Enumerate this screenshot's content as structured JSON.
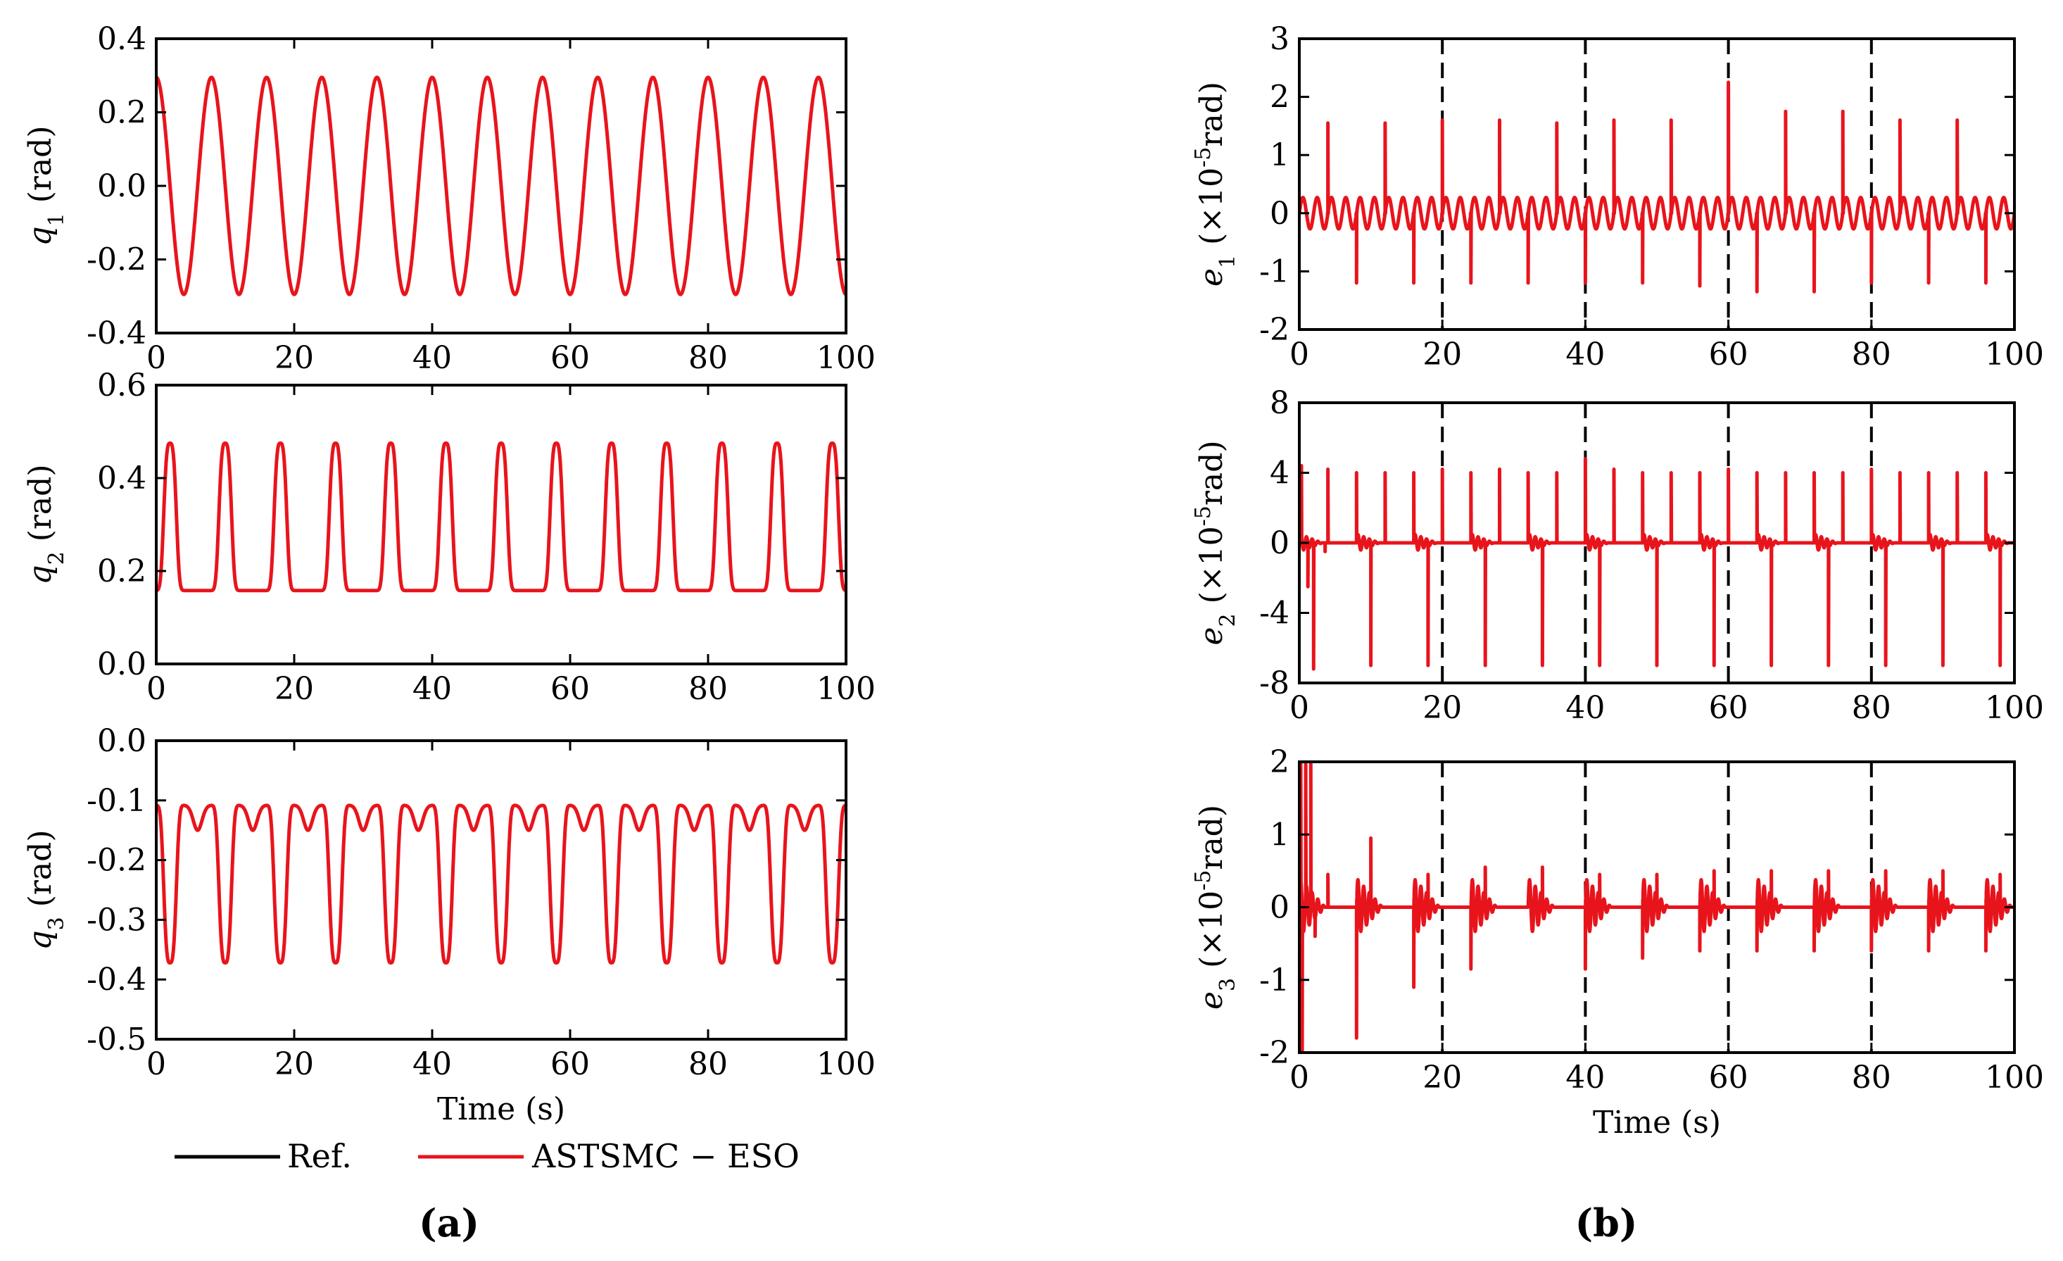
{
  "figure": {
    "panel_a_label": "(a)",
    "panel_b_label": "(b)",
    "legend": {
      "ref_label": "Ref.",
      "est_label": "ASTSMC − ESO"
    },
    "colors": {
      "reference": "#000000",
      "astsmc": "#e8141c",
      "axes": "#000000"
    }
  },
  "chart_data": [
    {
      "id": "q1",
      "type": "line",
      "panel": "a",
      "ylabel_sym": "q",
      "ylabel_sub": "1",
      "ylabel_unit": " (rad)",
      "xlabel": "",
      "xlim": [
        0,
        100
      ],
      "ylim": [
        -0.4,
        0.4
      ],
      "xticks": [
        0,
        20,
        40,
        60,
        80,
        100
      ],
      "xtick_labels": [
        "0",
        "20",
        "40",
        "60",
        "80",
        "100"
      ],
      "yticks": [
        -0.4,
        -0.2,
        0.0,
        0.2,
        0.4
      ],
      "ytick_labels": [
        "-0.4",
        "-0.2",
        "0.0",
        "0.2",
        "0.4"
      ],
      "vlines": [],
      "series": [
        {
          "name": "ASTSMC − ESO",
          "color": "#e8141c",
          "signal": {
            "kind": "cosine",
            "amplitude": 0.295,
            "offset": 0.0,
            "period": 8.0
          }
        }
      ]
    },
    {
      "id": "q2",
      "type": "line",
      "panel": "a",
      "ylabel_sym": "q",
      "ylabel_sub": "2",
      "ylabel_unit": " (rad)",
      "xlabel": "",
      "xlim": [
        0,
        100
      ],
      "ylim": [
        0.0,
        0.6
      ],
      "xticks": [
        0,
        20,
        40,
        60,
        80,
        100
      ],
      "xtick_labels": [
        "0",
        "20",
        "40",
        "60",
        "80",
        "100"
      ],
      "yticks": [
        0.0,
        0.2,
        0.4,
        0.6
      ],
      "ytick_labels": [
        "0.0",
        "0.2",
        "0.4",
        "0.6"
      ],
      "vlines": [],
      "series": [
        {
          "name": "ASTSMC − ESO",
          "color": "#e8141c",
          "signal": {
            "kind": "pulse",
            "base": 0.158,
            "peak": 0.475,
            "period": 8.0,
            "center": 2.0
          }
        }
      ]
    },
    {
      "id": "q3",
      "type": "line",
      "panel": "a",
      "ylabel_sym": "q",
      "ylabel_sub": "3",
      "ylabel_unit": " (rad)",
      "xlabel": "Time (s)",
      "xlim": [
        0,
        100
      ],
      "ylim": [
        -0.5,
        0.0
      ],
      "xticks": [
        0,
        20,
        40,
        60,
        80,
        100
      ],
      "xtick_labels": [
        "0",
        "20",
        "40",
        "60",
        "80",
        "100"
      ],
      "yticks": [
        -0.5,
        -0.4,
        -0.3,
        -0.2,
        -0.1,
        0.0
      ],
      "ytick_labels": [
        "-0.5",
        "-0.4",
        "-0.3",
        "-0.2",
        "-0.1",
        "0.0"
      ],
      "vlines": [],
      "series": [
        {
          "name": "ASTSMC − ESO",
          "color": "#e8141c",
          "signal": {
            "kind": "valley",
            "top": -0.108,
            "bottom": -0.372,
            "dip": -0.15,
            "period": 8.0,
            "center": 2.0
          }
        }
      ]
    },
    {
      "id": "e1",
      "type": "line",
      "panel": "b",
      "ylabel_sym": "e",
      "ylabel_sub": "1",
      "ylabel_unit": " (×10",
      "ylabel_exp": "-5",
      "ylabel_tail": "rad)",
      "xlabel": "",
      "xlim": [
        0,
        100
      ],
      "ylim": [
        -2,
        3
      ],
      "xticks": [
        0,
        20,
        40,
        60,
        80,
        100
      ],
      "xtick_labels": [
        "0",
        "20",
        "40",
        "60",
        "80",
        "100"
      ],
      "yticks": [
        -2,
        -1,
        0,
        1,
        2,
        3
      ],
      "ytick_labels": [
        "-2",
        "-1",
        "0",
        "1",
        "2",
        "3"
      ],
      "vlines": [
        20,
        40,
        60,
        80
      ],
      "series": [
        {
          "name": "ASTSMC − ESO",
          "color": "#e8141c",
          "signal": {
            "kind": "ripple",
            "amplitude": 0.27,
            "period": 4.0,
            "offset": 0.0
          },
          "spikes": [
            {
              "x": 4.0,
              "y": 1.55
            },
            {
              "x": 8.0,
              "y": -1.2
            },
            {
              "x": 12.0,
              "y": 1.55
            },
            {
              "x": 16.0,
              "y": -1.2
            },
            {
              "x": 20.0,
              "y": 1.6
            },
            {
              "x": 24.0,
              "y": -1.2
            },
            {
              "x": 28.0,
              "y": 1.6
            },
            {
              "x": 32.0,
              "y": -1.2
            },
            {
              "x": 36.0,
              "y": 1.55
            },
            {
              "x": 40.0,
              "y": -1.2
            },
            {
              "x": 44.0,
              "y": 1.6
            },
            {
              "x": 48.0,
              "y": -1.2
            },
            {
              "x": 52.0,
              "y": 1.6
            },
            {
              "x": 56.0,
              "y": -1.25
            },
            {
              "x": 60.0,
              "y": 2.25
            },
            {
              "x": 64.0,
              "y": -1.35
            },
            {
              "x": 68.0,
              "y": 1.75
            },
            {
              "x": 72.0,
              "y": -1.35
            },
            {
              "x": 76.0,
              "y": 1.75
            },
            {
              "x": 80.0,
              "y": -1.2
            },
            {
              "x": 84.0,
              "y": 1.6
            },
            {
              "x": 88.0,
              "y": -1.2
            },
            {
              "x": 92.0,
              "y": 1.6
            },
            {
              "x": 96.0,
              "y": -1.2
            }
          ]
        }
      ]
    },
    {
      "id": "e2",
      "type": "line",
      "panel": "b",
      "ylabel_sym": "e",
      "ylabel_sub": "2",
      "ylabel_unit": " (×10",
      "ylabel_exp": "-5",
      "ylabel_tail": "rad)",
      "xlabel": "",
      "xlim": [
        0,
        100
      ],
      "ylim": [
        -8,
        8
      ],
      "xticks": [
        0,
        20,
        40,
        60,
        80,
        100
      ],
      "xtick_labels": [
        "0",
        "20",
        "40",
        "60",
        "80",
        "100"
      ],
      "yticks": [
        -8,
        -4,
        0,
        4,
        8
      ],
      "ytick_labels": [
        "-8",
        "-4",
        "0",
        "4",
        "8"
      ],
      "vlines": [
        20,
        40,
        60,
        80
      ],
      "series": [
        {
          "name": "ASTSMC − ESO",
          "color": "#e8141c",
          "signal": {
            "kind": "burst",
            "period": 8.0,
            "start": 0.0,
            "length": 3.2,
            "amplitude": 0.5
          },
          "spikes": [
            {
              "x": 0.3,
              "y": 4.4
            },
            {
              "x": 1.2,
              "y": -2.5
            },
            {
              "x": 2.0,
              "y": -7.2
            },
            {
              "x": 3.6,
              "y": -0.5
            },
            {
              "x": 4.0,
              "y": 4.2
            },
            {
              "x": 8.0,
              "y": 4.0
            },
            {
              "x": 10.0,
              "y": -7.0
            },
            {
              "x": 12.0,
              "y": 4.0
            },
            {
              "x": 16.0,
              "y": 4.0
            },
            {
              "x": 18.0,
              "y": -7.0
            },
            {
              "x": 20.0,
              "y": 4.2
            },
            {
              "x": 24.0,
              "y": 4.0
            },
            {
              "x": 26.0,
              "y": -7.0
            },
            {
              "x": 28.0,
              "y": 4.2
            },
            {
              "x": 32.0,
              "y": 4.0
            },
            {
              "x": 34.0,
              "y": -7.0
            },
            {
              "x": 36.0,
              "y": 4.0
            },
            {
              "x": 40.0,
              "y": 4.8
            },
            {
              "x": 42.0,
              "y": -7.0
            },
            {
              "x": 44.0,
              "y": 4.2
            },
            {
              "x": 48.0,
              "y": 4.0
            },
            {
              "x": 50.0,
              "y": -7.0
            },
            {
              "x": 52.0,
              "y": 4.0
            },
            {
              "x": 56.0,
              "y": 4.0
            },
            {
              "x": 58.0,
              "y": -7.0
            },
            {
              "x": 60.0,
              "y": 4.2
            },
            {
              "x": 64.0,
              "y": 4.0
            },
            {
              "x": 66.0,
              "y": -7.0
            },
            {
              "x": 68.0,
              "y": 4.0
            },
            {
              "x": 72.0,
              "y": 4.0
            },
            {
              "x": 74.0,
              "y": -7.0
            },
            {
              "x": 76.0,
              "y": 4.0
            },
            {
              "x": 80.0,
              "y": 4.2
            },
            {
              "x": 82.0,
              "y": -7.0
            },
            {
              "x": 84.0,
              "y": 4.0
            },
            {
              "x": 88.0,
              "y": 4.0
            },
            {
              "x": 90.0,
              "y": -7.0
            },
            {
              "x": 92.0,
              "y": 4.0
            },
            {
              "x": 96.0,
              "y": 4.0
            },
            {
              "x": 98.0,
              "y": -7.0
            }
          ]
        }
      ]
    },
    {
      "id": "e3",
      "type": "line",
      "panel": "b",
      "ylabel_sym": "e",
      "ylabel_sub": "3",
      "ylabel_unit": " (×10",
      "ylabel_exp": "-5",
      "ylabel_tail": "rad)",
      "xlabel": "Time (s)",
      "xlim": [
        0,
        100
      ],
      "ylim": [
        -2,
        2
      ],
      "xticks": [
        0,
        20,
        40,
        60,
        80,
        100
      ],
      "xtick_labels": [
        "0",
        "20",
        "40",
        "60",
        "80",
        "100"
      ],
      "yticks": [
        -2,
        -1,
        0,
        1,
        2
      ],
      "ytick_labels": [
        "-2",
        "-1",
        "0",
        "1",
        "2"
      ],
      "vlines": [
        20,
        40,
        60,
        80
      ],
      "series": [
        {
          "name": "ASTSMC − ESO",
          "color": "#e8141c",
          "signal": {
            "kind": "burst",
            "period": 8.0,
            "start": 0.0,
            "length": 3.6,
            "amplitude": 0.4
          },
          "spikes": [
            {
              "x": 0.2,
              "y": 2.0
            },
            {
              "x": 0.4,
              "y": -2.0
            },
            {
              "x": 0.9,
              "y": 2.0
            },
            {
              "x": 1.6,
              "y": 2.0
            },
            {
              "x": 2.2,
              "y": -0.4
            },
            {
              "x": 4.0,
              "y": 0.45
            },
            {
              "x": 8.0,
              "y": -1.8
            },
            {
              "x": 10.0,
              "y": 0.95
            },
            {
              "x": 16.0,
              "y": -1.1
            },
            {
              "x": 18.0,
              "y": 0.45
            },
            {
              "x": 24.0,
              "y": -0.85
            },
            {
              "x": 26.0,
              "y": 0.55
            },
            {
              "x": 34.0,
              "y": 0.55
            },
            {
              "x": 40.0,
              "y": -0.85
            },
            {
              "x": 42.0,
              "y": 0.45
            },
            {
              "x": 48.0,
              "y": -0.7
            },
            {
              "x": 50.0,
              "y": 0.45
            },
            {
              "x": 56.0,
              "y": -0.6
            },
            {
              "x": 58.0,
              "y": 0.5
            },
            {
              "x": 64.0,
              "y": -0.6
            },
            {
              "x": 66.0,
              "y": 0.5
            },
            {
              "x": 72.0,
              "y": -0.6
            },
            {
              "x": 74.0,
              "y": 0.5
            },
            {
              "x": 80.0,
              "y": -0.6
            },
            {
              "x": 82.0,
              "y": 0.5
            },
            {
              "x": 88.0,
              "y": -0.6
            },
            {
              "x": 90.0,
              "y": 0.5
            },
            {
              "x": 96.0,
              "y": -0.6
            },
            {
              "x": 98.0,
              "y": 0.45
            }
          ]
        }
      ]
    }
  ]
}
